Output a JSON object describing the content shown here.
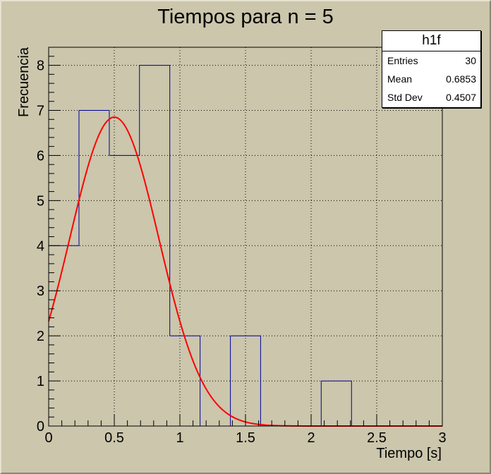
{
  "chart_data": {
    "type": "bar",
    "title": "Tiempos para n = 5",
    "xlabel": "Tiempo [s]",
    "ylabel": "Frecuencia",
    "xlim": [
      0,
      3
    ],
    "ylim": [
      0,
      8.4
    ],
    "grid": true,
    "x_ticks": [
      "0",
      "0.5",
      "1",
      "1.5",
      "2",
      "2.5",
      "3"
    ],
    "y_ticks": [
      "0",
      "1",
      "2",
      "3",
      "4",
      "5",
      "6",
      "7",
      "8"
    ],
    "bins": [
      {
        "low": 0.0,
        "high": 0.231,
        "value": 4
      },
      {
        "low": 0.231,
        "high": 0.462,
        "value": 7
      },
      {
        "low": 0.462,
        "high": 0.692,
        "value": 6
      },
      {
        "low": 0.692,
        "high": 0.923,
        "value": 8
      },
      {
        "low": 0.923,
        "high": 1.154,
        "value": 2
      },
      {
        "low": 1.154,
        "high": 1.385,
        "value": 0
      },
      {
        "low": 1.385,
        "high": 1.615,
        "value": 2
      },
      {
        "low": 1.615,
        "high": 1.846,
        "value": 0
      },
      {
        "low": 1.846,
        "high": 2.077,
        "value": 0
      },
      {
        "low": 2.077,
        "high": 2.308,
        "value": 1
      },
      {
        "low": 2.308,
        "high": 2.538,
        "value": 0
      },
      {
        "low": 2.538,
        "high": 2.769,
        "value": 0
      },
      {
        "low": 2.769,
        "high": 3.0,
        "value": 0
      }
    ],
    "fit": {
      "function": "gaussian",
      "constant": 6.85,
      "mean": 0.5,
      "sigma": 0.34,
      "color": "#ff0000"
    },
    "histogram_color": "#000099",
    "stats": {
      "name": "h1f",
      "rows": [
        {
          "label": "Entries",
          "value": "30"
        },
        {
          "label": "Mean",
          "value": "0.6853"
        },
        {
          "label": "Std Dev",
          "value": "0.4507"
        }
      ]
    }
  }
}
